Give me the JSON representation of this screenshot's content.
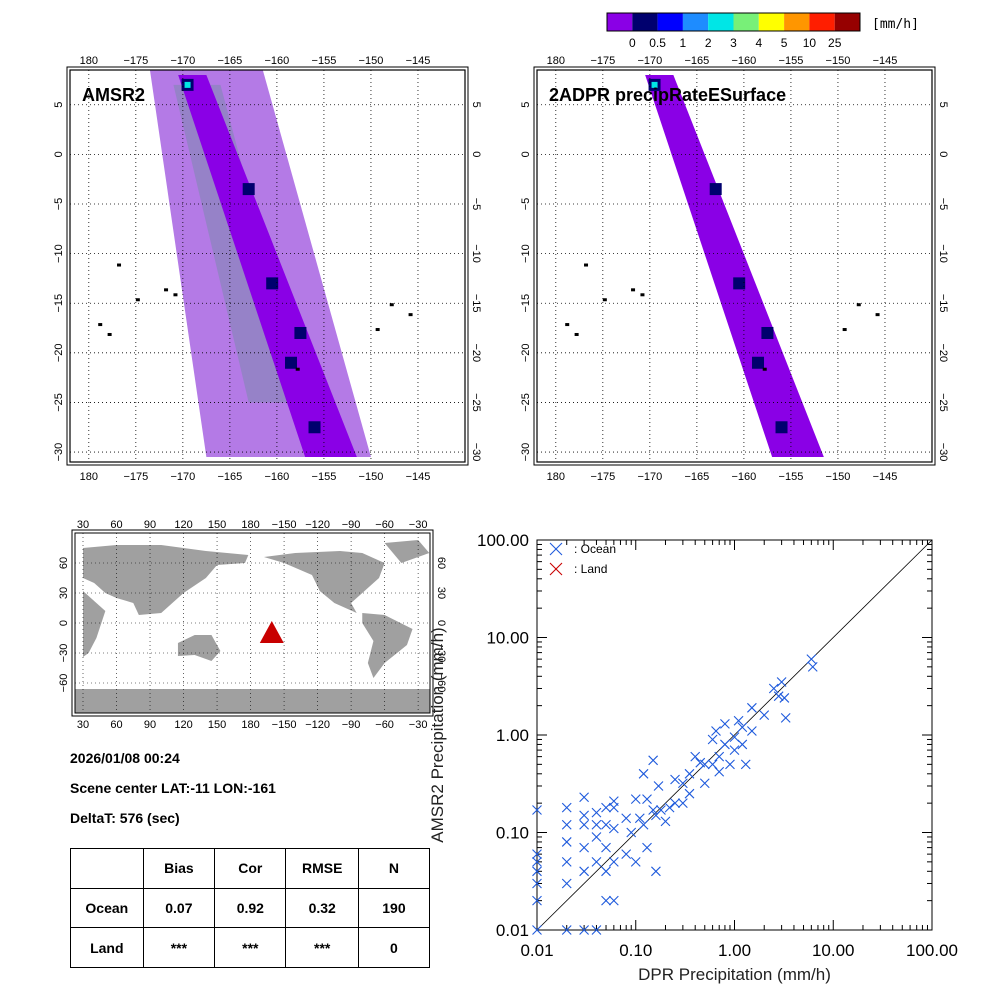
{
  "colorbar": {
    "unit": "[mm/h]",
    "colors": [
      "#8a00e6",
      "#00006e",
      "#0000ff",
      "#1e8cff",
      "#00e6e6",
      "#78f078",
      "#ffff00",
      "#ff9600",
      "#ff1e00",
      "#960000"
    ],
    "ticks": [
      "0",
      "0.5",
      "1",
      "2",
      "3",
      "4",
      "5",
      "10",
      "25"
    ]
  },
  "panels": {
    "amsr2_title": "AMSR2",
    "dpr_title": "2ADPR precipRateESurface",
    "lon_ticks": [
      "180",
      "−175",
      "−170",
      "−165",
      "−160",
      "−155",
      "−150",
      "−145"
    ],
    "lat_ticks": [
      "5",
      "0",
      "−5",
      "−10",
      "−15",
      "−20",
      "−25",
      "−30"
    ],
    "swath_colors": {
      "amsr2_wide": "#b47ae6",
      "light_rain": "#9682c8",
      "dpr": "#8a00e6",
      "heavy": "#00006e"
    }
  },
  "world_map": {
    "top_ticks": [
      "30",
      "60",
      "90",
      "120",
      "150",
      "180",
      "−150",
      "−120",
      "−90",
      "−60",
      "−30"
    ],
    "lat_ticks": [
      "60",
      "30",
      "0",
      "−30",
      "−60"
    ],
    "marker": {
      "lat": -11,
      "lon": -161,
      "color": "#c80000"
    },
    "land_color": "#a0a0a0"
  },
  "info": {
    "datetime": "2026/01/08 00:24",
    "scene_center": "Scene center LAT:-11   LON:-161",
    "delta_t": "DeltaT:  576 (sec)"
  },
  "stats": {
    "headers": [
      "",
      "Bias",
      "Cor",
      "RMSE",
      "N"
    ],
    "rows": [
      [
        "Ocean",
        "0.07",
        "0.92",
        "0.32",
        "190"
      ],
      [
        "Land",
        "***",
        "***",
        "***",
        "0"
      ]
    ]
  },
  "chart_data": {
    "type": "scatter",
    "xlabel": "DPR Precipitation (mm/h)",
    "ylabel": "AMSR2 Precipitation (mm/h)",
    "xscale": "log",
    "yscale": "log",
    "xlim": [
      0.01,
      100
    ],
    "ylim": [
      0.01,
      100
    ],
    "x_tick_labels": [
      "0.01",
      "0.10",
      "1.00",
      "10.00",
      "100.00"
    ],
    "y_tick_labels": [
      "0.01",
      "0.10",
      "1.00",
      "10.00",
      "100.00"
    ],
    "legend": [
      {
        "label": ": Ocean",
        "color": "#1e5adc"
      },
      {
        "label": ": Land",
        "color": "#c80000"
      }
    ],
    "legend_position": "top-left",
    "reference_line": "1:1",
    "series": [
      {
        "name": "Ocean",
        "color": "#1e5adc",
        "points": [
          [
            0.01,
            0.17
          ],
          [
            0.01,
            0.06
          ],
          [
            0.01,
            0.05
          ],
          [
            0.01,
            0.04
          ],
          [
            0.01,
            0.03
          ],
          [
            0.01,
            0.02
          ],
          [
            0.01,
            0.01
          ],
          [
            0.02,
            0.18
          ],
          [
            0.02,
            0.12
          ],
          [
            0.02,
            0.08
          ],
          [
            0.02,
            0.05
          ],
          [
            0.02,
            0.03
          ],
          [
            0.02,
            0.01
          ],
          [
            0.03,
            0.23
          ],
          [
            0.03,
            0.15
          ],
          [
            0.03,
            0.12
          ],
          [
            0.03,
            0.07
          ],
          [
            0.03,
            0.04
          ],
          [
            0.03,
            0.01
          ],
          [
            0.04,
            0.16
          ],
          [
            0.04,
            0.12
          ],
          [
            0.04,
            0.09
          ],
          [
            0.04,
            0.05
          ],
          [
            0.04,
            0.01
          ],
          [
            0.05,
            0.18
          ],
          [
            0.05,
            0.12
          ],
          [
            0.05,
            0.07
          ],
          [
            0.05,
            0.04
          ],
          [
            0.05,
            0.02
          ],
          [
            0.06,
            0.21
          ],
          [
            0.06,
            0.18
          ],
          [
            0.06,
            0.11
          ],
          [
            0.06,
            0.05
          ],
          [
            0.06,
            0.02
          ],
          [
            0.08,
            0.14
          ],
          [
            0.08,
            0.06
          ],
          [
            0.09,
            0.1
          ],
          [
            0.1,
            0.22
          ],
          [
            0.1,
            0.05
          ],
          [
            0.11,
            0.14
          ],
          [
            0.12,
            0.12
          ],
          [
            0.12,
            0.4
          ],
          [
            0.13,
            0.22
          ],
          [
            0.13,
            0.07
          ],
          [
            0.15,
            0.55
          ],
          [
            0.15,
            0.17
          ],
          [
            0.16,
            0.15
          ],
          [
            0.16,
            0.04
          ],
          [
            0.17,
            0.3
          ],
          [
            0.18,
            0.17
          ],
          [
            0.2,
            0.13
          ],
          [
            0.22,
            0.18
          ],
          [
            0.25,
            0.2
          ],
          [
            0.25,
            0.35
          ],
          [
            0.3,
            0.32
          ],
          [
            0.3,
            0.2
          ],
          [
            0.35,
            0.4
          ],
          [
            0.35,
            0.25
          ],
          [
            0.4,
            0.6
          ],
          [
            0.45,
            0.52
          ],
          [
            0.5,
            0.5
          ],
          [
            0.5,
            0.32
          ],
          [
            0.6,
            0.9
          ],
          [
            0.6,
            0.5
          ],
          [
            0.65,
            1.1
          ],
          [
            0.7,
            0.6
          ],
          [
            0.7,
            0.42
          ],
          [
            0.8,
            1.3
          ],
          [
            0.8,
            0.8
          ],
          [
            0.9,
            0.5
          ],
          [
            1.0,
            0.95
          ],
          [
            1.0,
            0.7
          ],
          [
            1.1,
            1.4
          ],
          [
            1.2,
            1.2
          ],
          [
            1.2,
            0.8
          ],
          [
            1.3,
            0.5
          ],
          [
            1.5,
            1.9
          ],
          [
            1.5,
            1.1
          ],
          [
            2.0,
            1.6
          ],
          [
            2.5,
            3.0
          ],
          [
            2.8,
            2.5
          ],
          [
            3.0,
            3.5
          ],
          [
            3.2,
            2.4
          ],
          [
            3.3,
            1.5
          ],
          [
            6.0,
            6.0
          ],
          [
            6.2,
            5.0
          ]
        ]
      },
      {
        "name": "Land",
        "color": "#c80000",
        "points": []
      }
    ]
  }
}
